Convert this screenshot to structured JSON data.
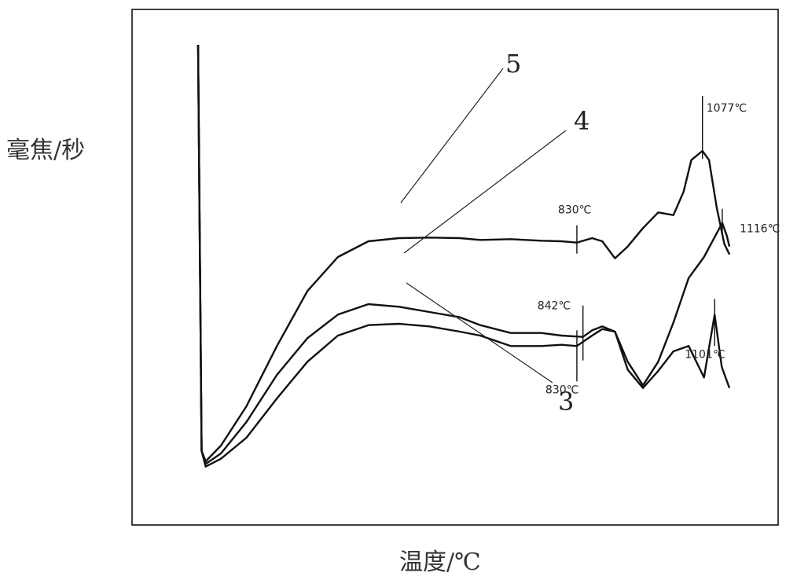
{
  "chart_data": {
    "type": "line",
    "title": "",
    "xlabel": "温度/℃",
    "ylabel": "毫焦/秒",
    "grid": false,
    "legend": "none",
    "x_ticks_shown": false,
    "y_ticks_shown": false,
    "series": [
      {
        "name": "5",
        "points": [
          [
            85,
            1000
          ],
          [
            92,
            -550
          ],
          [
            100,
            -590
          ],
          [
            130,
            -530
          ],
          [
            180,
            -380
          ],
          [
            240,
            -150
          ],
          [
            300,
            60
          ],
          [
            360,
            190
          ],
          [
            420,
            250
          ],
          [
            480,
            262
          ],
          [
            540,
            264
          ],
          [
            600,
            262
          ],
          [
            640,
            255
          ],
          [
            700,
            258
          ],
          [
            760,
            252
          ],
          [
            800,
            250
          ],
          [
            830,
            245
          ],
          [
            860,
            262
          ],
          [
            880,
            250
          ],
          [
            905,
            185
          ],
          [
            930,
            230
          ],
          [
            960,
            300
          ],
          [
            990,
            360
          ],
          [
            1020,
            350
          ],
          [
            1040,
            440
          ],
          [
            1055,
            560
          ],
          [
            1077,
            595
          ],
          [
            1090,
            560
          ],
          [
            1105,
            380
          ],
          [
            1120,
            240
          ],
          [
            1130,
            200
          ]
        ]
      },
      {
        "name": "4",
        "points": [
          [
            85,
            1000
          ],
          [
            92,
            -550
          ],
          [
            100,
            -600
          ],
          [
            130,
            -560
          ],
          [
            180,
            -440
          ],
          [
            240,
            -260
          ],
          [
            300,
            -120
          ],
          [
            360,
            -30
          ],
          [
            420,
            10
          ],
          [
            480,
            0
          ],
          [
            540,
            -20
          ],
          [
            600,
            -40
          ],
          [
            640,
            -70
          ],
          [
            700,
            -100
          ],
          [
            760,
            -100
          ],
          [
            800,
            -110
          ],
          [
            842,
            -115
          ],
          [
            860,
            -90
          ],
          [
            880,
            -75
          ],
          [
            905,
            -95
          ],
          [
            930,
            -210
          ],
          [
            960,
            -300
          ],
          [
            990,
            -210
          ],
          [
            1020,
            -60
          ],
          [
            1050,
            110
          ],
          [
            1080,
            190
          ],
          [
            1116,
            320
          ],
          [
            1125,
            270
          ],
          [
            1130,
            230
          ]
        ]
      },
      {
        "name": "3",
        "points": [
          [
            85,
            1000
          ],
          [
            92,
            -550
          ],
          [
            100,
            -610
          ],
          [
            130,
            -580
          ],
          [
            180,
            -500
          ],
          [
            240,
            -350
          ],
          [
            300,
            -210
          ],
          [
            360,
            -110
          ],
          [
            420,
            -70
          ],
          [
            480,
            -65
          ],
          [
            540,
            -75
          ],
          [
            600,
            -95
          ],
          [
            640,
            -110
          ],
          [
            700,
            -150
          ],
          [
            760,
            -150
          ],
          [
            800,
            -145
          ],
          [
            830,
            -150
          ],
          [
            860,
            -110
          ],
          [
            880,
            -85
          ],
          [
            905,
            -95
          ],
          [
            930,
            -240
          ],
          [
            960,
            -310
          ],
          [
            990,
            -245
          ],
          [
            1020,
            -170
          ],
          [
            1050,
            -150
          ],
          [
            1080,
            -270
          ],
          [
            1101,
            -30
          ],
          [
            1115,
            -230
          ],
          [
            1130,
            -310
          ]
        ]
      }
    ],
    "annotations": [
      {
        "label": "830℃",
        "series": "5",
        "x": 830
      },
      {
        "label": "1077℃",
        "series": "5",
        "x": 1077
      },
      {
        "label": "1116℃",
        "series": "4",
        "x": 1116
      },
      {
        "label": "842℃",
        "series": "4",
        "x": 842
      },
      {
        "label": "830℃",
        "series": "3",
        "x": 830
      },
      {
        "label": "1101℃",
        "series": "3",
        "x": 1101
      }
    ]
  }
}
